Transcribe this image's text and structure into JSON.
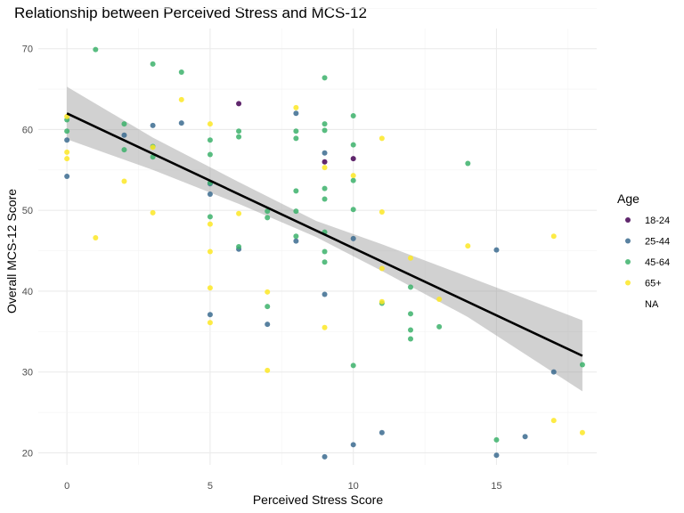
{
  "chart_data": {
    "type": "scatter",
    "title": "Relationship between Perceived Stress and MCS-12",
    "xlabel": "Perceived Stress Score",
    "ylabel": "Overall MCS-12 Score",
    "xlim": [
      -1,
      18.5
    ],
    "ylim": [
      18.5,
      72.5
    ],
    "xticks": [
      0,
      5,
      10,
      15
    ],
    "yticks": [
      20,
      30,
      40,
      50,
      60,
      70
    ],
    "grid": true,
    "legend": {
      "title": "Age",
      "placement": "right",
      "entries": [
        {
          "label": "18-24",
          "color": "#440154"
        },
        {
          "label": "25-44",
          "color": "#3b6b8f"
        },
        {
          "label": "45-64",
          "color": "#3cb26b"
        },
        {
          "label": "65+",
          "color": "#fde725"
        },
        {
          "label": "NA",
          "color": null
        }
      ]
    },
    "trend": {
      "x": [
        0,
        18
      ],
      "y": [
        62.0,
        32.0
      ],
      "ci": [
        {
          "x": 0,
          "low": 58.8,
          "high": 65.3
        },
        {
          "x": 3,
          "low": 55.0,
          "high": 59.0
        },
        {
          "x": 6,
          "low": 50.8,
          "high": 53.5
        },
        {
          "x": 8.7,
          "low": 46.7,
          "high": 48.7
        },
        {
          "x": 11,
          "low": 42.5,
          "high": 45.8
        },
        {
          "x": 14,
          "low": 36.8,
          "high": 41.8
        },
        {
          "x": 18,
          "low": 27.6,
          "high": 36.4
        }
      ]
    },
    "series": [
      {
        "name": "18-24",
        "color": "#440154",
        "points": [
          [
            6,
            63.2
          ],
          [
            9,
            56.0
          ],
          [
            10,
            56.4
          ]
        ]
      },
      {
        "name": "25-44",
        "color": "#3b6b8f",
        "points": [
          [
            0,
            54.2
          ],
          [
            0,
            58.7
          ],
          [
            2,
            59.3
          ],
          [
            3,
            60.5
          ],
          [
            4,
            60.8
          ],
          [
            5,
            53.3
          ],
          [
            5,
            52.0
          ],
          [
            5,
            37.1
          ],
          [
            6,
            45.2
          ],
          [
            7,
            35.9
          ],
          [
            8,
            62.0
          ],
          [
            8,
            46.2
          ],
          [
            9,
            57.1
          ],
          [
            9,
            39.6
          ],
          [
            9,
            19.5
          ],
          [
            10,
            46.5
          ],
          [
            10,
            21.0
          ],
          [
            11,
            22.5
          ],
          [
            15,
            45.1
          ],
          [
            15,
            19.7
          ],
          [
            16,
            22.0
          ],
          [
            17,
            30.0
          ]
        ]
      },
      {
        "name": "45-64",
        "color": "#3cb26b",
        "points": [
          [
            0,
            59.8
          ],
          [
            0,
            61.2
          ],
          [
            1,
            69.9
          ],
          [
            2,
            57.5
          ],
          [
            2,
            60.7
          ],
          [
            3,
            68.1
          ],
          [
            3,
            56.6
          ],
          [
            3,
            57.9
          ],
          [
            4,
            67.1
          ],
          [
            5,
            56.9
          ],
          [
            5,
            58.7
          ],
          [
            5,
            53.4
          ],
          [
            5,
            49.2
          ],
          [
            6,
            59.8
          ],
          [
            6,
            59.1
          ],
          [
            6,
            45.5
          ],
          [
            7,
            49.1
          ],
          [
            7,
            49.9
          ],
          [
            7,
            38.1
          ],
          [
            8,
            59.8
          ],
          [
            8,
            58.9
          ],
          [
            8,
            52.4
          ],
          [
            8,
            49.9
          ],
          [
            8,
            46.8
          ],
          [
            9,
            66.4
          ],
          [
            9,
            60.7
          ],
          [
            9,
            59.9
          ],
          [
            9,
            52.7
          ],
          [
            9,
            51.4
          ],
          [
            9,
            47.3
          ],
          [
            9,
            44.9
          ],
          [
            9,
            43.6
          ],
          [
            10,
            61.7
          ],
          [
            10,
            58.1
          ],
          [
            10,
            53.7
          ],
          [
            10,
            50.1
          ],
          [
            10,
            30.8
          ],
          [
            11,
            38.5
          ],
          [
            12,
            40.5
          ],
          [
            12,
            37.2
          ],
          [
            12,
            35.2
          ],
          [
            12,
            34.1
          ],
          [
            13,
            35.6
          ],
          [
            14,
            55.8
          ],
          [
            15,
            21.6
          ],
          [
            18,
            30.9
          ]
        ]
      },
      {
        "name": "65+",
        "color": "#fde725",
        "points": [
          [
            0,
            61.6
          ],
          [
            0,
            57.2
          ],
          [
            0,
            56.4
          ],
          [
            1,
            46.6
          ],
          [
            2,
            53.6
          ],
          [
            3,
            57.8
          ],
          [
            3,
            49.7
          ],
          [
            4,
            63.7
          ],
          [
            5,
            60.7
          ],
          [
            5,
            48.3
          ],
          [
            5,
            44.9
          ],
          [
            5,
            40.4
          ],
          [
            5,
            36.1
          ],
          [
            6,
            49.6
          ],
          [
            7,
            39.9
          ],
          [
            7,
            30.2
          ],
          [
            8,
            62.7
          ],
          [
            9,
            55.3
          ],
          [
            9,
            35.5
          ],
          [
            10,
            54.3
          ],
          [
            11,
            58.9
          ],
          [
            11,
            49.8
          ],
          [
            11,
            42.8
          ],
          [
            11,
            38.7
          ],
          [
            12,
            44.1
          ],
          [
            13,
            39.0
          ],
          [
            14,
            45.6
          ],
          [
            17,
            46.8
          ],
          [
            17,
            24.0
          ],
          [
            18,
            22.5
          ]
        ]
      }
    ]
  }
}
